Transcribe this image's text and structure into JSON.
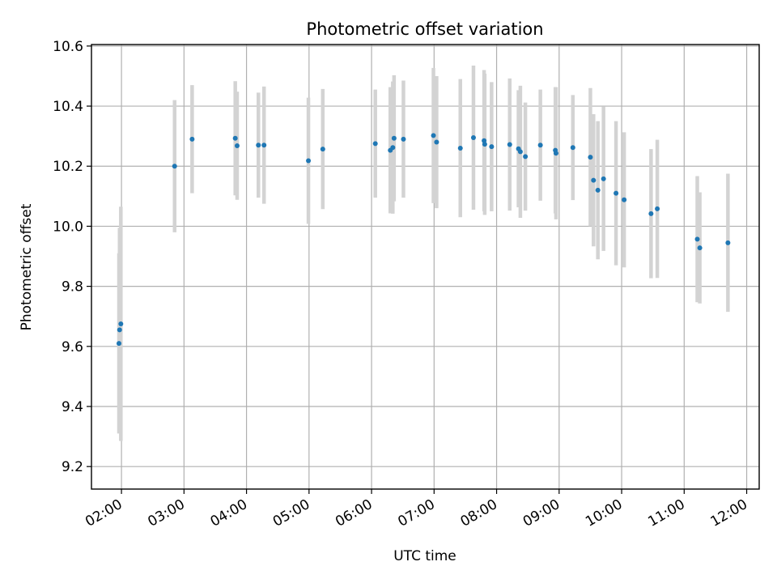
{
  "chart_data": {
    "type": "scatter",
    "title": "Photometric offset variation",
    "xlabel": "UTC time",
    "ylabel": "Photometric offset",
    "x_unit": "UTC hour (decimal)",
    "xlim": [
      1.52,
      12.2
    ],
    "ylim": [
      9.125,
      10.605
    ],
    "x_ticks": [
      {
        "value": 2,
        "label": "02:00"
      },
      {
        "value": 3,
        "label": "03:00"
      },
      {
        "value": 4,
        "label": "04:00"
      },
      {
        "value": 5,
        "label": "05:00"
      },
      {
        "value": 6,
        "label": "06:00"
      },
      {
        "value": 7,
        "label": "07:00"
      },
      {
        "value": 8,
        "label": "08:00"
      },
      {
        "value": 9,
        "label": "09:00"
      },
      {
        "value": 10,
        "label": "10:00"
      },
      {
        "value": 11,
        "label": "11:00"
      },
      {
        "value": 12,
        "label": "12:00"
      }
    ],
    "y_ticks": [
      {
        "value": 9.2,
        "label": "9.2"
      },
      {
        "value": 9.4,
        "label": "9.4"
      },
      {
        "value": 9.6,
        "label": "9.6"
      },
      {
        "value": 9.8,
        "label": "9.8"
      },
      {
        "value": 10.0,
        "label": "10.0"
      },
      {
        "value": 10.2,
        "label": "10.2"
      },
      {
        "value": 10.4,
        "label": "10.4"
      },
      {
        "value": 10.6,
        "label": "10.6"
      }
    ],
    "grid": true,
    "x_tick_rotation": 30,
    "point_color": "#1f77b4",
    "errorbar_color": "#d3d3d3",
    "points": [
      {
        "x": 1.96,
        "y": 9.61,
        "err": 0.3
      },
      {
        "x": 1.97,
        "y": 9.655,
        "err": 0.34
      },
      {
        "x": 1.99,
        "y": 9.675,
        "err": 0.39
      },
      {
        "x": 2.85,
        "y": 10.2,
        "err": 0.22
      },
      {
        "x": 3.13,
        "y": 10.29,
        "err": 0.18
      },
      {
        "x": 3.82,
        "y": 10.293,
        "err": 0.19
      },
      {
        "x": 3.85,
        "y": 10.268,
        "err": 0.18
      },
      {
        "x": 4.19,
        "y": 10.27,
        "err": 0.175
      },
      {
        "x": 4.28,
        "y": 10.27,
        "err": 0.195
      },
      {
        "x": 4.99,
        "y": 10.218,
        "err": 0.21
      },
      {
        "x": 5.22,
        "y": 10.257,
        "err": 0.2
      },
      {
        "x": 6.06,
        "y": 10.275,
        "err": 0.18
      },
      {
        "x": 6.3,
        "y": 10.253,
        "err": 0.21
      },
      {
        "x": 6.34,
        "y": 10.262,
        "err": 0.22
      },
      {
        "x": 6.36,
        "y": 10.293,
        "err": 0.21
      },
      {
        "x": 6.51,
        "y": 10.29,
        "err": 0.195
      },
      {
        "x": 6.99,
        "y": 10.302,
        "err": 0.225
      },
      {
        "x": 7.04,
        "y": 10.28,
        "err": 0.22
      },
      {
        "x": 7.42,
        "y": 10.26,
        "err": 0.23
      },
      {
        "x": 7.63,
        "y": 10.295,
        "err": 0.24
      },
      {
        "x": 7.8,
        "y": 10.285,
        "err": 0.235
      },
      {
        "x": 7.81,
        "y": 10.273,
        "err": 0.235
      },
      {
        "x": 7.92,
        "y": 10.265,
        "err": 0.215
      },
      {
        "x": 8.21,
        "y": 10.272,
        "err": 0.22
      },
      {
        "x": 8.35,
        "y": 10.258,
        "err": 0.195
      },
      {
        "x": 8.38,
        "y": 10.248,
        "err": 0.22
      },
      {
        "x": 8.46,
        "y": 10.232,
        "err": 0.18
      },
      {
        "x": 8.7,
        "y": 10.27,
        "err": 0.185
      },
      {
        "x": 8.94,
        "y": 10.253,
        "err": 0.21
      },
      {
        "x": 8.95,
        "y": 10.243,
        "err": 0.22
      },
      {
        "x": 9.22,
        "y": 10.262,
        "err": 0.175
      },
      {
        "x": 9.5,
        "y": 10.23,
        "err": 0.23
      },
      {
        "x": 9.55,
        "y": 10.153,
        "err": 0.22
      },
      {
        "x": 9.62,
        "y": 10.12,
        "err": 0.23
      },
      {
        "x": 9.71,
        "y": 10.158,
        "err": 0.24
      },
      {
        "x": 9.91,
        "y": 10.11,
        "err": 0.24
      },
      {
        "x": 10.04,
        "y": 10.088,
        "err": 0.225
      },
      {
        "x": 10.47,
        "y": 10.042,
        "err": 0.215
      },
      {
        "x": 10.57,
        "y": 10.058,
        "err": 0.23
      },
      {
        "x": 11.21,
        "y": 9.957,
        "err": 0.21
      },
      {
        "x": 11.25,
        "y": 9.928,
        "err": 0.185
      },
      {
        "x": 11.7,
        "y": 9.945,
        "err": 0.23
      }
    ]
  }
}
